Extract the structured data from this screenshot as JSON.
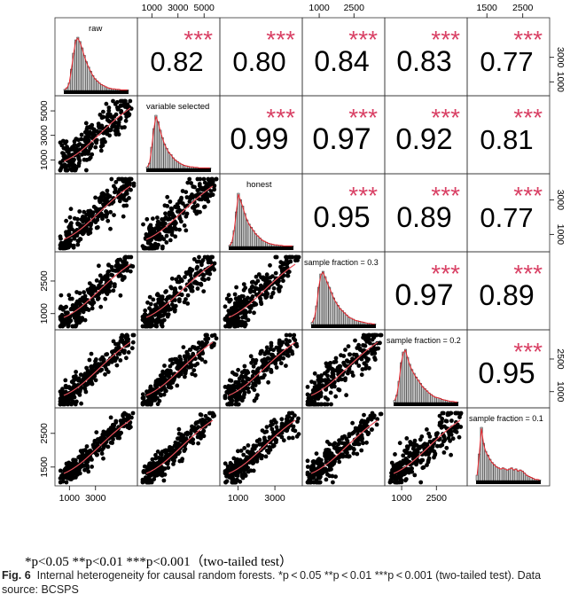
{
  "chart_data": {
    "type": "scatter-matrix",
    "variables": [
      "raw",
      "variable selected",
      "honest",
      "sample fraction = 0.3",
      "sample fraction = 0.2",
      "sample fraction = 0.1"
    ],
    "correlations": [
      [
        null,
        "0.82",
        "0.80",
        "0.84",
        "0.83",
        "0.77"
      ],
      [
        null,
        null,
        "0.99",
        "0.97",
        "0.92",
        "0.81"
      ],
      [
        null,
        null,
        null,
        "0.95",
        "0.89",
        "0.77"
      ],
      [
        null,
        null,
        null,
        null,
        "0.97",
        "0.89"
      ],
      [
        null,
        null,
        null,
        null,
        null,
        "0.95"
      ]
    ],
    "significance": "***",
    "ranges": [
      [
        300,
        5800
      ],
      [
        300,
        5800
      ],
      [
        300,
        4200
      ],
      [
        500,
        3600
      ],
      [
        500,
        3600
      ],
      [
        1100,
        3100
      ]
    ],
    "top_ticks": [
      [],
      [
        "1000",
        "3000",
        "5000"
      ],
      [],
      [
        "1000",
        "2500"
      ],
      [],
      [
        "1500",
        "2500"
      ]
    ],
    "bottom_ticks": [
      [
        "1000",
        "3000"
      ],
      [],
      [
        "1000",
        "3000"
      ],
      [],
      [
        "1000",
        "2500"
      ],
      []
    ],
    "left_ticks": [
      [],
      [
        "1000",
        "3000",
        "5000"
      ],
      [],
      [
        "1000",
        "2500"
      ],
      [],
      [
        "1500",
        "2500"
      ]
    ],
    "right_ticks": [
      [
        "1000",
        "3000"
      ],
      [],
      [
        "1000",
        "3000"
      ],
      [],
      [
        "1000",
        "2500"
      ],
      []
    ],
    "tick_values": {
      "1000": 1000,
      "1500": 1500,
      "2500": 2500,
      "3000": 3000,
      "5000": 5000
    },
    "histogram_shapes": [
      [
        2,
        5,
        14,
        40,
        70,
        95,
        100,
        92,
        80,
        66,
        54,
        44,
        36,
        28,
        22,
        18,
        14,
        11,
        9,
        7,
        5,
        4,
        3,
        3,
        2,
        2,
        1,
        1,
        1,
        1
      ],
      [
        3,
        10,
        40,
        75,
        100,
        88,
        72,
        58,
        46,
        38,
        30,
        26,
        20,
        16,
        13,
        10,
        8,
        6,
        5,
        4,
        3,
        3,
        2,
        2,
        1,
        1,
        1,
        1,
        1,
        1
      ],
      [
        2,
        8,
        30,
        65,
        100,
        88,
        76,
        62,
        50,
        42,
        36,
        30,
        24,
        20,
        16,
        12,
        10,
        8,
        6,
        5,
        4,
        3,
        3,
        2,
        2,
        1,
        1,
        1,
        1,
        1
      ],
      [
        4,
        12,
        35,
        70,
        95,
        100,
        90,
        80,
        70,
        60,
        50,
        42,
        36,
        30,
        26,
        22,
        18,
        14,
        12,
        10,
        8,
        7,
        6,
        5,
        4,
        3,
        2,
        2,
        1,
        1
      ],
      [
        4,
        14,
        40,
        75,
        95,
        100,
        85,
        72,
        62,
        55,
        48,
        42,
        36,
        30,
        26,
        22,
        18,
        15,
        12,
        10,
        9,
        8,
        6,
        5,
        4,
        3,
        2,
        2,
        1,
        1
      ],
      [
        10,
        50,
        100,
        70,
        55,
        48,
        40,
        34,
        30,
        26,
        24,
        22,
        24,
        22,
        20,
        22,
        24,
        20,
        22,
        18,
        20,
        18,
        14,
        10,
        8,
        6,
        4,
        2,
        2,
        1
      ]
    ]
  },
  "colors": {
    "points": "#000000",
    "smooth_line": "#e8505b",
    "stars": "#d94165",
    "hist_fill": "#c8c8c8",
    "density": "#e8242c"
  },
  "significance_note": "*p<0.05 **p<0.01 ***p<0.001（two-tailed test）",
  "caption": {
    "label": "Fig. 6",
    "text": "Internal heterogeneity for causal random forests. *p < 0.05 **p < 0.01 ***p < 0.001 (two-tailed test). Data source: BCSPS"
  }
}
